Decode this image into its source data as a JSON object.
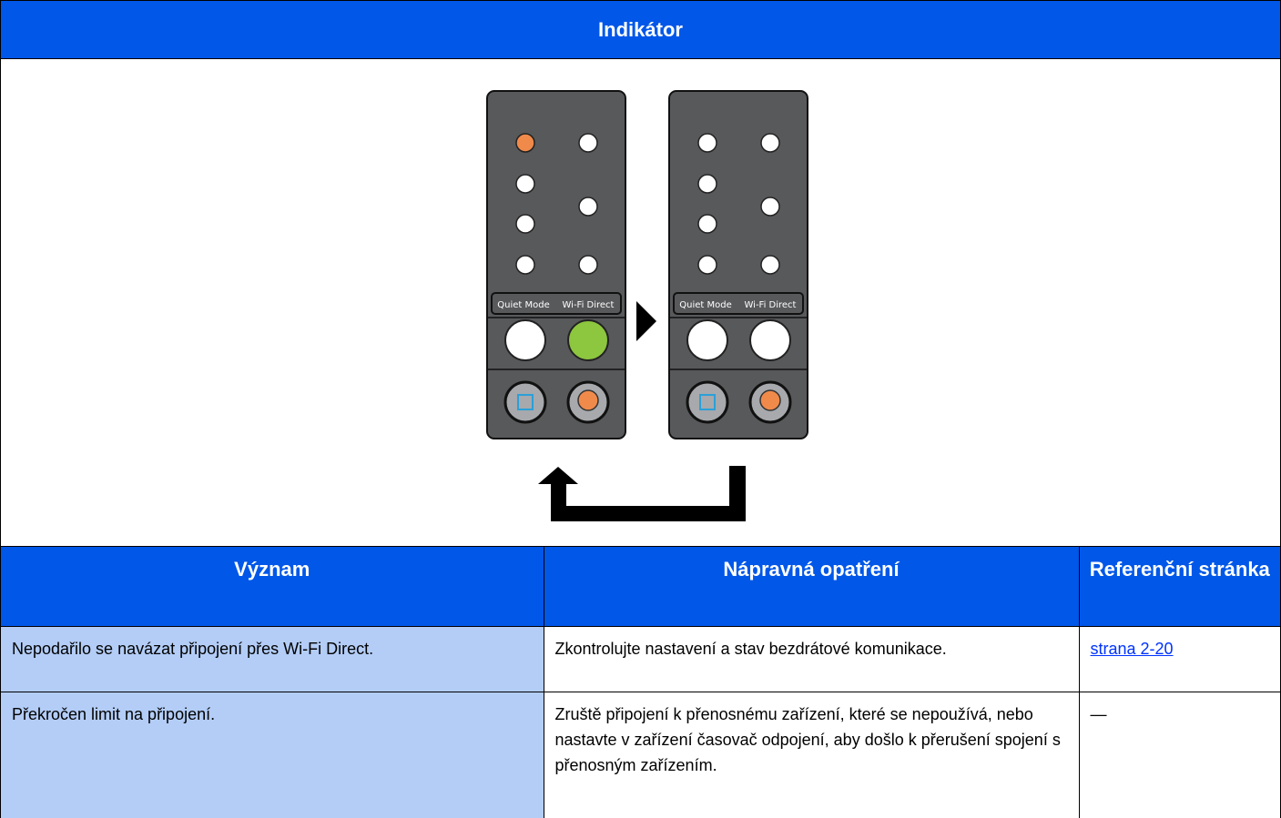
{
  "header": {
    "title": "Indikátor"
  },
  "panels": [
    {
      "button_labels": [
        "Quiet Mode",
        "Wi-Fi Direct"
      ]
    },
    {
      "button_labels": [
        "Quiet Mode",
        "Wi-Fi Direct"
      ]
    }
  ],
  "table": {
    "columns": [
      "Význam",
      "Nápravná opatření",
      "Referenční stránka"
    ],
    "rows": [
      [
        "Nepodařilo se navázat připojení přes Wi-Fi Direct.",
        "Zkontrolujte nastavení a stav bezdrátové komunikace.",
        "strana 2-20"
      ],
      [
        "Překročen limit na připojení.",
        "Zruště připojení k přenosnému zařízení, které se nepoužívá, nebo nastavte v zařízení časovač odpojení, aby došlo k přerušení spojení s přenosným zařízením.",
        "—"
      ]
    ]
  }
}
